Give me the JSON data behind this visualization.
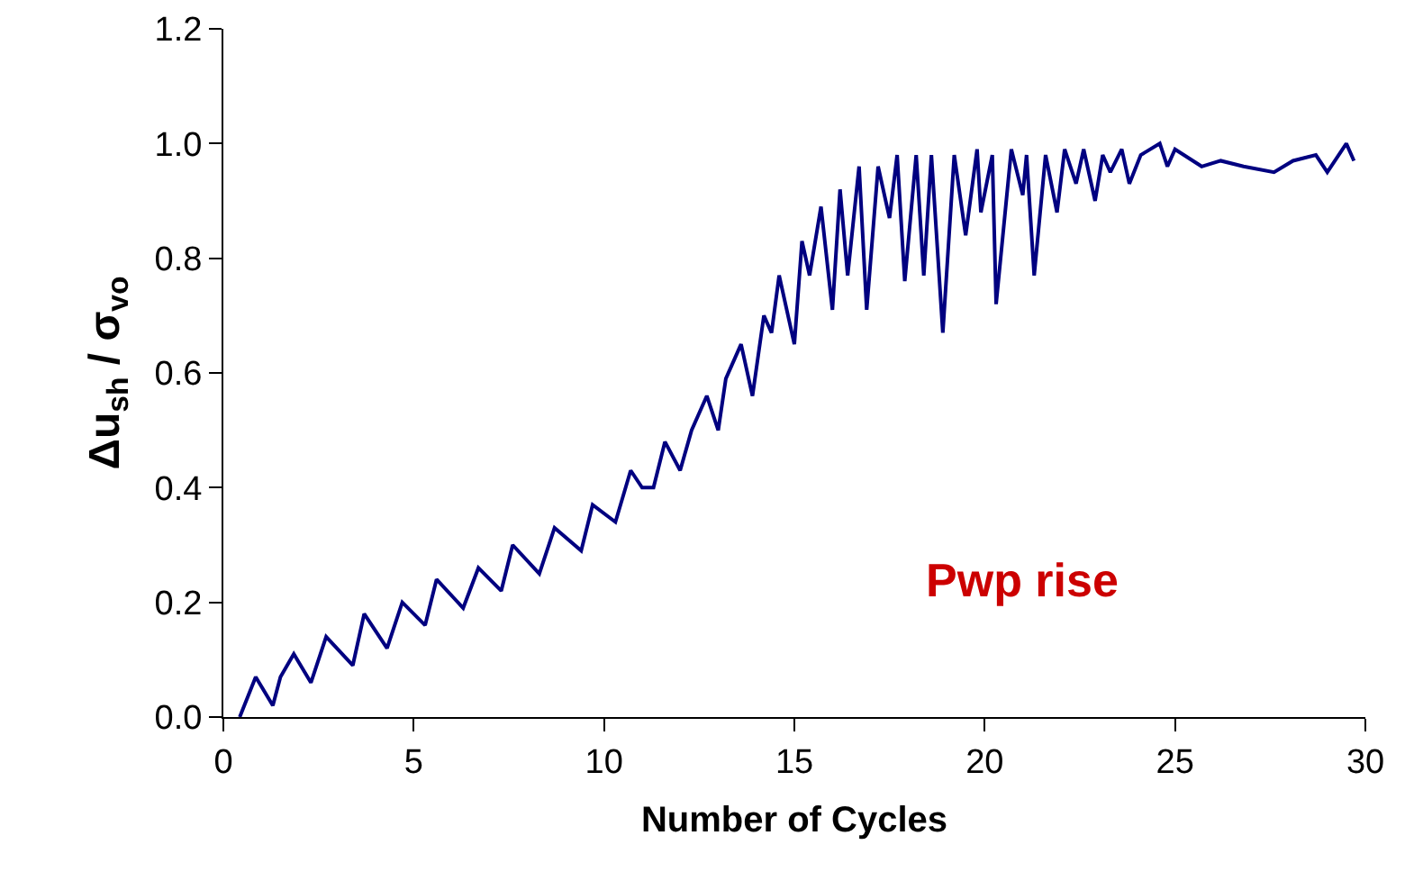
{
  "chart_data": {
    "type": "line",
    "xlabel": "Number of Cycles",
    "ylabel": "Δu$_{sh}$ / σ$_{vo}$",
    "annotations": [
      "Pwp rise"
    ],
    "xlim": [
      0,
      30
    ],
    "xticks": [
      0,
      5,
      10,
      15,
      20,
      25,
      30
    ],
    "ylim": [
      0,
      1.2
    ],
    "yticks": [
      {
        "value": 0,
        "label": "0.0"
      },
      0.2,
      0.4,
      0.6,
      0.8,
      {
        "value": 1,
        "label": "1.0"
      },
      1.2
    ],
    "grid": false,
    "marker": "none",
    "line_style": "solid",
    "series": [
      {
        "color": "#000080",
        "x": [
          0.43,
          0.85,
          1.3,
          1.5,
          1.85,
          2.3,
          2.7,
          3.4,
          3.7,
          4.3,
          4.7,
          5.3,
          5.6,
          6.3,
          6.7,
          7.3,
          7.6,
          8.3,
          8.7,
          9.4,
          9.7,
          10.3,
          10.7,
          11.0,
          11.3,
          11.6,
          12.0,
          12.3,
          12.7,
          13.0,
          13.2,
          13.6,
          13.9,
          14.2,
          14.4,
          14.6,
          15.0,
          15.2,
          15.4,
          15.7,
          16.0,
          16.2,
          16.4,
          16.7,
          16.9,
          17.2,
          17.5,
          17.7,
          17.9,
          18.2,
          18.4,
          18.6,
          18.9,
          19.2,
          19.5,
          19.8,
          19.9,
          20.2,
          20.3,
          20.7,
          21.0,
          21.1,
          21.3,
          21.6,
          21.9,
          22.1,
          22.4,
          22.6,
          22.9,
          23.1,
          23.3,
          23.6,
          23.8,
          24.1,
          24.6,
          24.8,
          25.0,
          25.7,
          26.2,
          26.8,
          27.6,
          28.1,
          28.7,
          29.0,
          29.5,
          29.7
        ],
        "values": [
          0.0,
          0.07,
          0.02,
          0.07,
          0.11,
          0.06,
          0.14,
          0.09,
          0.18,
          0.12,
          0.2,
          0.16,
          0.24,
          0.19,
          0.26,
          0.22,
          0.3,
          0.25,
          0.33,
          0.29,
          0.37,
          0.34,
          0.43,
          0.4,
          0.4,
          0.48,
          0.43,
          0.5,
          0.56,
          0.5,
          0.59,
          0.65,
          0.56,
          0.7,
          0.67,
          0.77,
          0.65,
          0.83,
          0.77,
          0.89,
          0.71,
          0.92,
          0.77,
          0.96,
          0.71,
          0.96,
          0.87,
          0.98,
          0.76,
          0.98,
          0.77,
          0.98,
          0.67,
          0.98,
          0.84,
          0.99,
          0.88,
          0.98,
          0.72,
          0.99,
          0.91,
          0.98,
          0.77,
          0.98,
          0.88,
          0.99,
          0.93,
          0.99,
          0.9,
          0.98,
          0.95,
          0.99,
          0.93,
          0.98,
          1.0,
          0.96,
          0.99,
          0.96,
          0.97,
          0.96,
          0.95,
          0.97,
          0.98,
          0.95,
          1.0,
          0.97
        ]
      }
    ]
  }
}
